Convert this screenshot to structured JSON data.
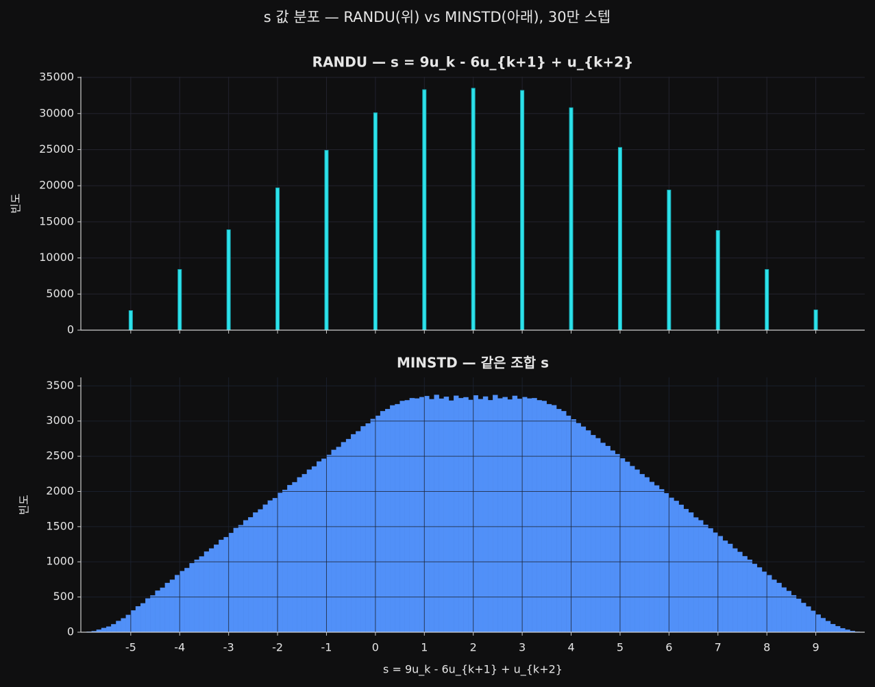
{
  "title": "s 값 분포 — RANDU(위) vs MINSTD(아래), 30만 스텝",
  "chart_data": [
    {
      "type": "histogram",
      "title": "RANDU — s = 9u_k - 6u_{k+1} + u_{k+2}",
      "ylabel": "빈도",
      "color": "#2de2ea",
      "edgecolor": "#17a9b4",
      "grid": true,
      "bins": [
        -5.035,
        -4.965,
        -4.035,
        -3.965,
        -3.035,
        -2.965,
        -2.035,
        -1.965,
        -1.035,
        -0.965,
        -0.035,
        0.035,
        0.965,
        1.035,
        1.965,
        2.035,
        2.965,
        3.035,
        3.965,
        4.035,
        4.965,
        5.035,
        5.965,
        6.035,
        6.965,
        7.035,
        7.965,
        8.035,
        8.965,
        9.035
      ],
      "values": [
        2700,
        0,
        8400,
        0,
        13900,
        0,
        19700,
        0,
        24900,
        0,
        30100,
        0,
        33300,
        0,
        33500,
        0,
        33200,
        0,
        30800,
        0,
        25300,
        0,
        19400,
        0,
        13800,
        0,
        8400,
        0,
        2800
      ],
      "xlim": [
        -6.02,
        10.0
      ],
      "ylim": [
        0,
        35100
      ],
      "yticks": [
        0,
        5000,
        10000,
        15000,
        20000,
        25000,
        30000,
        35000
      ]
    },
    {
      "type": "histogram",
      "title": "MINSTD — 같은 조합 s",
      "ylabel": "빈도",
      "xlabel": "s = 9u_k - 6u_{k+1} + u_{k+2}",
      "color": "#5190f8",
      "grid": true,
      "bins": [
        -6,
        -5.9,
        -5.8,
        -5.7,
        -5.6,
        -5.5,
        -5.4,
        -5.3,
        -5.2,
        -5.1,
        -5,
        -4.9,
        -4.8,
        -4.7,
        -4.6,
        -4.5,
        -4.4,
        -4.3,
        -4.2,
        -4.1,
        -4,
        -3.9,
        -3.8,
        -3.7,
        -3.6,
        -3.5,
        -3.4,
        -3.3,
        -3.2,
        -3.1,
        -3,
        -2.9,
        -2.8,
        -2.7,
        -2.6,
        -2.5,
        -2.4,
        -2.3,
        -2.2,
        -2.1,
        -2,
        -1.9,
        -1.8,
        -1.7,
        -1.6,
        -1.5,
        -1.4,
        -1.3,
        -1.2,
        -1.1,
        -1,
        -0.9,
        -0.8,
        -0.7,
        -0.6,
        -0.5,
        -0.4,
        -0.3,
        -0.2,
        -0.1,
        0,
        0.1,
        0.2,
        0.3,
        0.4,
        0.5,
        0.6,
        0.7,
        0.8,
        0.9,
        1,
        1.1,
        1.2,
        1.3,
        1.4,
        1.5,
        1.6,
        1.7,
        1.8,
        1.9,
        2,
        2.1,
        2.2,
        2.3,
        2.4,
        2.5,
        2.6,
        2.7,
        2.8,
        2.9,
        3,
        3.1,
        3.2,
        3.3,
        3.4,
        3.5,
        3.6,
        3.7,
        3.8,
        3.9,
        4,
        4.1,
        4.2,
        4.3,
        4.4,
        4.5,
        4.6,
        4.7,
        4.8,
        4.9,
        5,
        5.1,
        5.2,
        5.3,
        5.4,
        5.5,
        5.6,
        5.7,
        5.8,
        5.9,
        6,
        6.1,
        6.2,
        6.3,
        6.4,
        6.5,
        6.6,
        6.7,
        6.8,
        6.9,
        7,
        7.1,
        7.2,
        7.3,
        7.4,
        7.5,
        7.6,
        7.7,
        7.8,
        7.9,
        8,
        8.1,
        8.2,
        8.3,
        8.4,
        8.5,
        8.6,
        8.7,
        8.8,
        8.9,
        9,
        9.1,
        9.2,
        9.3,
        9.4,
        9.5,
        9.6,
        9.7,
        9.8,
        9.9,
        10
      ],
      "values": [
        2,
        7,
        15,
        36,
        60,
        80,
        113,
        160,
        198,
        246,
        310,
        368,
        410,
        480,
        522,
        590,
        632,
        700,
        745,
        812,
        868,
        911,
        980,
        1030,
        1076,
        1145,
        1190,
        1244,
        1312,
        1350,
        1410,
        1480,
        1522,
        1590,
        1632,
        1700,
        1745,
        1812,
        1870,
        1905,
        1980,
        2022,
        2090,
        2131,
        2200,
        2245,
        2310,
        2355,
        2425,
        2465,
        2520,
        2590,
        2632,
        2700,
        2744,
        2812,
        2855,
        2925,
        2966,
        3030,
        3075,
        3140,
        3170,
        3222,
        3240,
        3285,
        3295,
        3325,
        3320,
        3340,
        3355,
        3310,
        3372,
        3318,
        3345,
        3290,
        3360,
        3325,
        3338,
        3300,
        3365,
        3312,
        3348,
        3296,
        3370,
        3322,
        3340,
        3305,
        3358,
        3315,
        3340,
        3320,
        3325,
        3295,
        3285,
        3240,
        3225,
        3170,
        3140,
        3075,
        3025,
        2970,
        2920,
        2866,
        2800,
        2755,
        2690,
        2645,
        2580,
        2530,
        2470,
        2420,
        2360,
        2310,
        2245,
        2200,
        2135,
        2085,
        2030,
        1975,
        1910,
        1865,
        1810,
        1750,
        1700,
        1630,
        1590,
        1525,
        1475,
        1415,
        1365,
        1300,
        1255,
        1190,
        1140,
        1080,
        1030,
        970,
        920,
        860,
        810,
        745,
        700,
        635,
        585,
        525,
        475,
        415,
        365,
        305,
        250,
        200,
        158,
        115,
        85,
        55,
        35,
        17,
        6,
        1
      ],
      "xlim": [
        -6.02,
        10.0
      ],
      "ylim": [
        0,
        3620
      ],
      "xticks": [
        -5,
        -4,
        -3,
        -2,
        -1,
        0,
        1,
        2,
        3,
        4,
        5,
        6,
        7,
        8,
        9
      ],
      "yticks": [
        0,
        500,
        1000,
        1500,
        2000,
        2500,
        3000,
        3500
      ]
    }
  ]
}
